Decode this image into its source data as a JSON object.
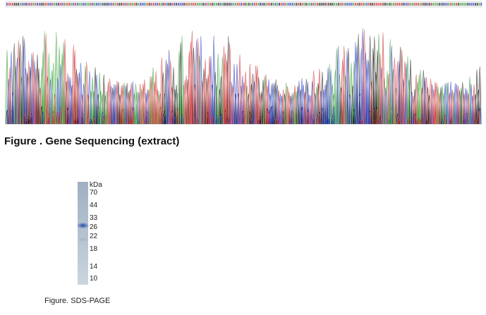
{
  "figures": [
    {
      "caption": "Figure . Gene Sequencing (extract)"
    },
    {
      "caption": "Figure. SDS-PAGE",
      "unit": "kDa",
      "markers": [
        "70",
        "44",
        "33",
        "26",
        "22",
        "18",
        "14",
        "10"
      ]
    }
  ]
}
